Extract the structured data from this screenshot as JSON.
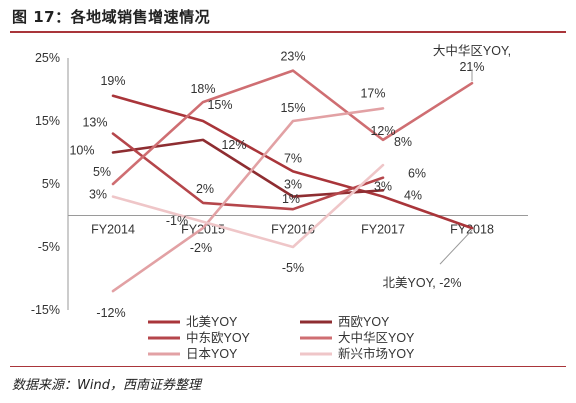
{
  "header": {
    "title": "图 17：各地域销售增速情况"
  },
  "footer": {
    "source": "数据来源：Wind，西南证券整理"
  },
  "chart_data": {
    "type": "line",
    "title": "",
    "xlabel": "",
    "ylabel": "",
    "categories": [
      "FY2014",
      "FY2015",
      "FY2016",
      "FY2017",
      "FY2018"
    ],
    "y_ticks": [
      "-15%",
      "-5%",
      "5%",
      "15%",
      "25%"
    ],
    "ylim": [
      -15,
      25
    ],
    "grid": false,
    "legend_position": "bottom",
    "series": [
      {
        "name": "北美YOY",
        "color": "#a9353a",
        "values": [
          19,
          15,
          7,
          3,
          -2
        ],
        "labels": [
          "19%",
          "15%",
          "7%",
          "3%",
          "北美YOY, -2%"
        ]
      },
      {
        "name": "西欧YOY",
        "color": "#8e2d31",
        "values": [
          10,
          12,
          3,
          4,
          null
        ],
        "labels": [
          "10%",
          "12%",
          "3%",
          "4%",
          ""
        ]
      },
      {
        "name": "中东欧YOY",
        "color": "#b5464b",
        "values": [
          13,
          2,
          1,
          6,
          null
        ],
        "labels": [
          "13%",
          "2%",
          "1%",
          "6%",
          ""
        ]
      },
      {
        "name": "大中华区YOY",
        "color": "#cf6e72",
        "values": [
          5,
          18,
          23,
          12,
          21
        ],
        "labels": [
          "5%",
          "18%",
          "23%",
          "12%",
          "大中华区YOY,\n21%"
        ]
      },
      {
        "name": "日本YOY",
        "color": "#e2a1a4",
        "values": [
          -12,
          -2,
          15,
          17,
          null
        ],
        "labels": [
          "-12%",
          "-2%",
          "15%",
          "17%",
          ""
        ]
      },
      {
        "name": "新兴市场YOY",
        "color": "#efc6c8",
        "values": [
          3,
          -1,
          -5,
          8,
          null
        ],
        "labels": [
          "3%",
          "-1%",
          "-5%",
          "8%",
          ""
        ]
      }
    ]
  }
}
